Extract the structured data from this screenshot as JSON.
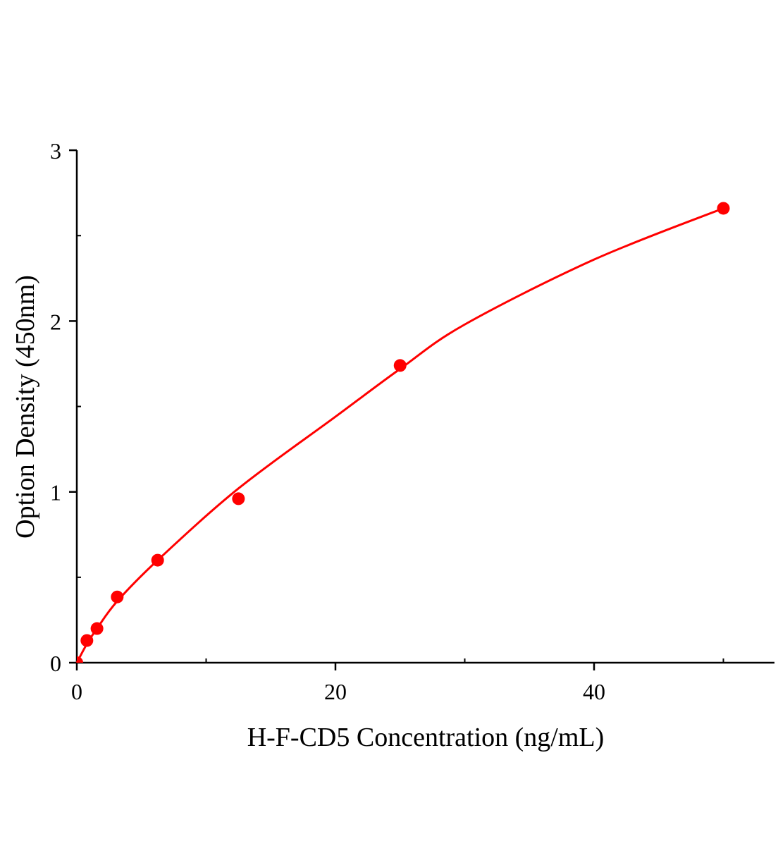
{
  "chart_data": {
    "type": "scatter",
    "title": "",
    "xlabel": "H-F-CD5 Concentration (ng/mL)",
    "ylabel": "Option Density (450nm)",
    "xlim": [
      0,
      54
    ],
    "ylim": [
      0,
      3
    ],
    "xticks": [
      0,
      20,
      40
    ],
    "xtick_labels": [
      "0",
      "20",
      "40"
    ],
    "x_minor_ticks": [
      10,
      30,
      50
    ],
    "yticks": [
      0,
      1,
      2,
      3
    ],
    "ytick_labels": [
      "0",
      "1",
      "2",
      "3"
    ],
    "y_minor_ticks": [
      0.5,
      1.5,
      2.5
    ],
    "grid": false,
    "color": "#ff0000",
    "points": {
      "x": [
        0,
        0.78,
        1.56,
        3.125,
        6.25,
        12.5,
        25,
        50
      ],
      "y": [
        0.0,
        0.13,
        0.2,
        0.385,
        0.6,
        0.96,
        1.74,
        2.66
      ]
    },
    "fit_curve": {
      "x": [
        0,
        0.78,
        1.56,
        3.125,
        6.25,
        12.5,
        20,
        25,
        30,
        40,
        50
      ],
      "y": [
        0.0,
        0.11,
        0.2,
        0.36,
        0.6,
        1.02,
        1.44,
        1.72,
        1.98,
        2.36,
        2.66
      ]
    }
  }
}
